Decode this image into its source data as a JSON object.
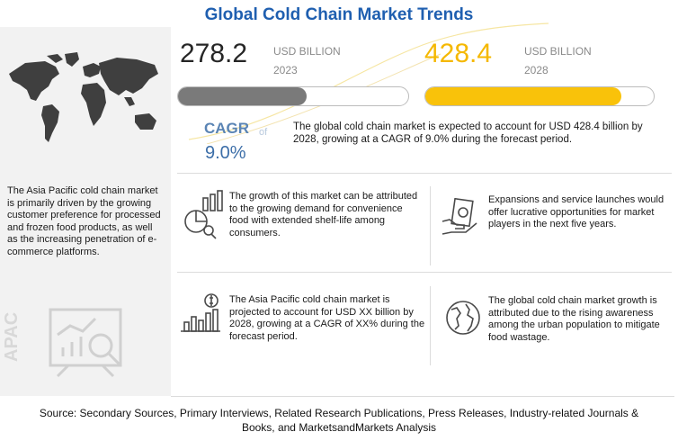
{
  "title": "Global Cold Chain Market Trends",
  "chart_data": {
    "type": "bar",
    "title": "Global Cold Chain Market Trends",
    "categories": [
      "2023",
      "2028"
    ],
    "series": [
      {
        "values": [
          278.2,
          428.4
        ]
      }
    ],
    "unit": "USD BILLION",
    "cagr_label": "CAGR",
    "cagr_of": "of",
    "cagr_value": "9.0%",
    "colors": {
      "2023": "#7a7a7a",
      "2028": "#f9c20a"
    }
  },
  "stats": {
    "v2023": "278.2",
    "unit_2023": "USD BILLION",
    "year_2023": "2023",
    "v2028": "428.4",
    "unit_2028": "USD BILLION",
    "year_2028": "2028"
  },
  "summary": "The global cold chain market is expected to account for USD 428.4 billion by 2028, growing at a CAGR of 9.0% during the forecast period.",
  "sidebar": {
    "text": "The Asia Pacific cold chain market is primarily driven by the growing customer preference for processed and frozen food products, as well as the increasing penetration of e-commerce platforms.",
    "region": "APAC"
  },
  "insights": [
    {
      "icon": "food-chart-icon",
      "text": "The growth of this market can be attributed to the growing demand for convenience food with extended shelf-life among consumers."
    },
    {
      "icon": "money-hand-icon",
      "text": "Expansions and service launches would offer lucrative opportunities for market players in the next five years."
    },
    {
      "icon": "growth-chart-icon",
      "text": "The Asia Pacific cold chain market is projected to account for USD XX billion by 2028, growing at a CAGR of XX% during the forecast period."
    },
    {
      "icon": "globe-icon",
      "text": "The global cold chain market growth is attributed due to the rising awareness among the urban population to mitigate food wastage."
    }
  ],
  "source": "Source: Secondary Sources, Primary Interviews, Related Research Publications, Press Releases, Industry-related Journals & Books, and MarketsandMarkets Analysis"
}
